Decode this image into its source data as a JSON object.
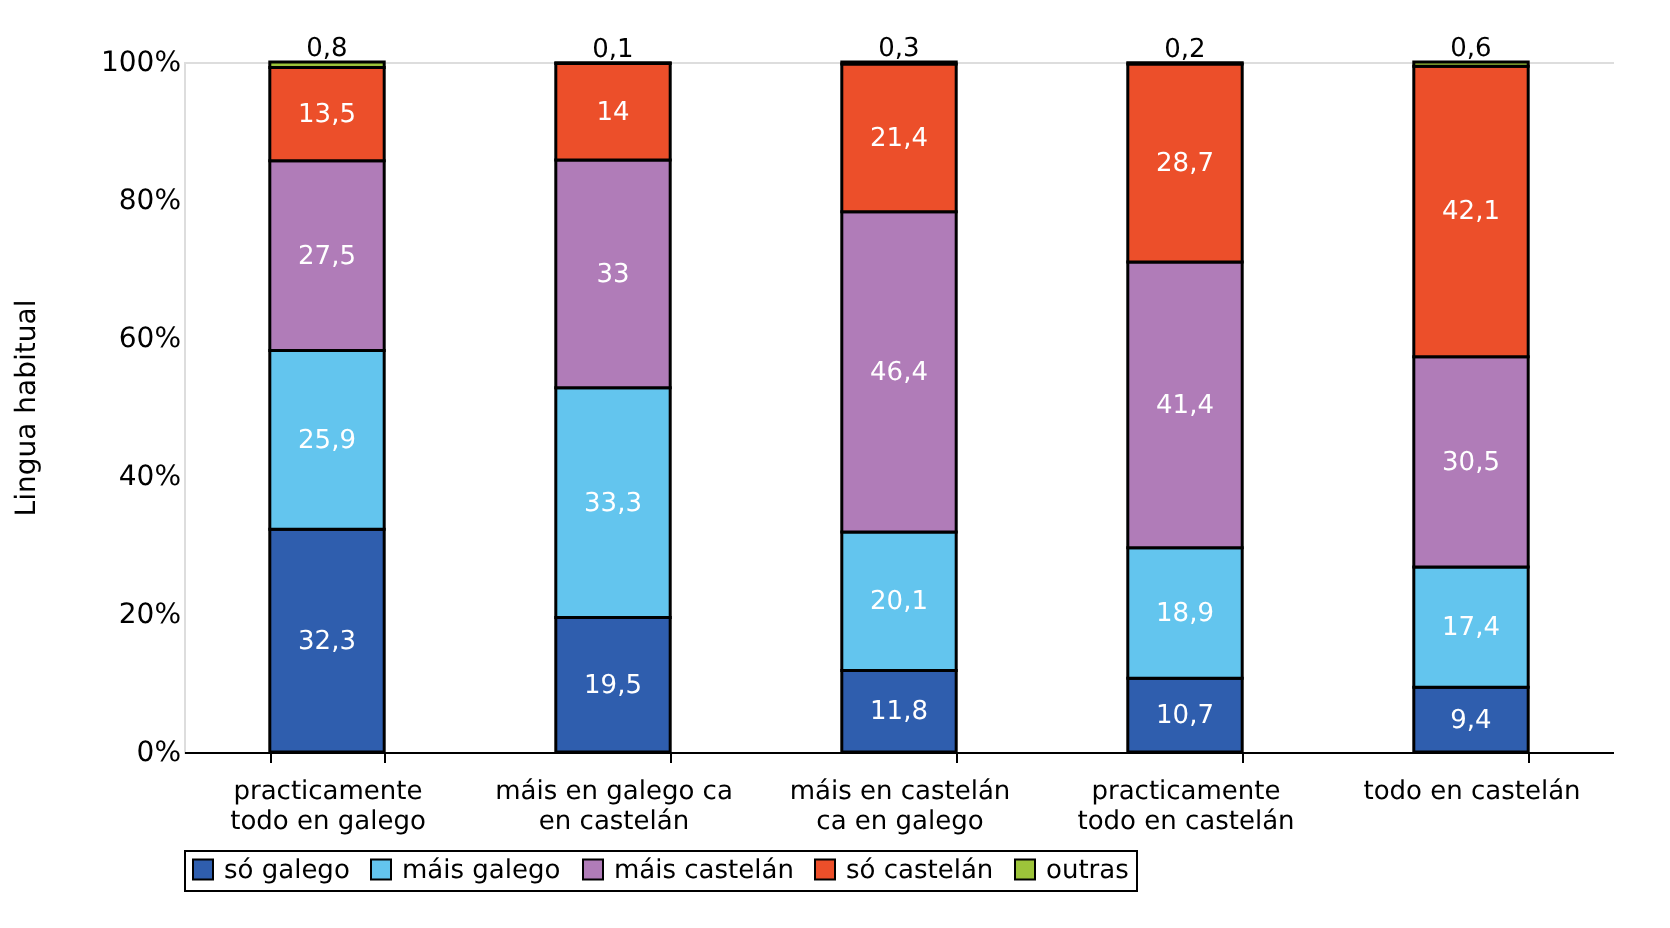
{
  "chart_data": {
    "type": "bar",
    "stacked": true,
    "ylabel": "Lingua habitual",
    "categories": [
      "practicamente todo en galego",
      "máis en galego ca en castelán",
      "máis en castelán ca en galego",
      "practicamente todo en castelán",
      "todo en castelán"
    ],
    "series": [
      {
        "name": "só galego",
        "color": "#2f5eae",
        "values": [
          32.3,
          19.5,
          11.8,
          10.7,
          9.4
        ],
        "value_labels": [
          "32,3",
          "19,5",
          "11,8",
          "10,7",
          "9,4"
        ]
      },
      {
        "name": "máis galego",
        "color": "#63c5ee",
        "values": [
          25.9,
          33.3,
          20.1,
          18.9,
          17.4
        ],
        "value_labels": [
          "25,9",
          "33,3",
          "20,1",
          "18,9",
          "17,4"
        ]
      },
      {
        "name": "máis castelán",
        "color": "#b07cb8",
        "values": [
          27.5,
          33,
          46.4,
          41.4,
          30.5
        ],
        "value_labels": [
          "27,5",
          "33",
          "46,4",
          "41,4",
          "30,5"
        ]
      },
      {
        "name": "só castelán",
        "color": "#ec4f2a",
        "values": [
          13.5,
          14,
          21.4,
          28.7,
          42.1
        ],
        "value_labels": [
          "13,5",
          "14",
          "21,4",
          "28,7",
          "42,1"
        ]
      },
      {
        "name": "outras",
        "color": "#9dc43a",
        "values": [
          0.8,
          0.1,
          0.3,
          0.2,
          0.6
        ],
        "value_labels": [
          "0,8",
          "0,1",
          "0,3",
          "0,2",
          "0,6"
        ]
      }
    ],
    "ylim": [
      0,
      100
    ],
    "yticks": [
      {
        "value": 0,
        "label": "0%"
      },
      {
        "value": 20,
        "label": "20%"
      },
      {
        "value": 40,
        "label": "40%"
      },
      {
        "value": 60,
        "label": "60%"
      },
      {
        "value": 80,
        "label": "80%"
      },
      {
        "value": 100,
        "label": "100%"
      }
    ],
    "grid": false,
    "legend": "bottom"
  }
}
